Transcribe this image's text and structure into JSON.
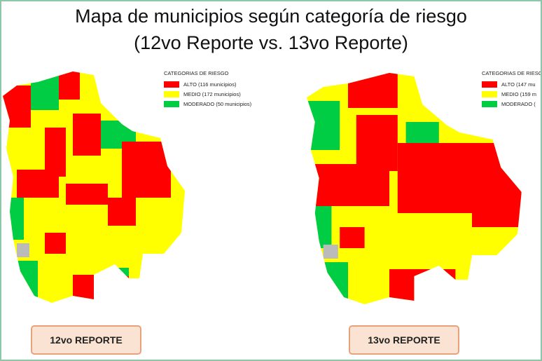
{
  "header": {
    "title_line1": "Mapa de municipios según categoría de riesgo",
    "title_line2": "(12vo Reporte vs. 13vo Reporte)"
  },
  "maps": [
    {
      "legend": {
        "title": "CATEGORIAS DE RIESGO",
        "items": [
          "ALTO (116 municipios)",
          "MEDIO (172 municipios)",
          "MODERADO (50 municipios)"
        ]
      },
      "label": "12vo REPORTE"
    },
    {
      "legend": {
        "title": "CATEGORIAS DE RIESGO",
        "items": [
          "ALTO (147 mu",
          "MEDIO (159 m",
          "MODERADO ("
        ]
      },
      "label": "13vo REPORTE"
    }
  ]
}
